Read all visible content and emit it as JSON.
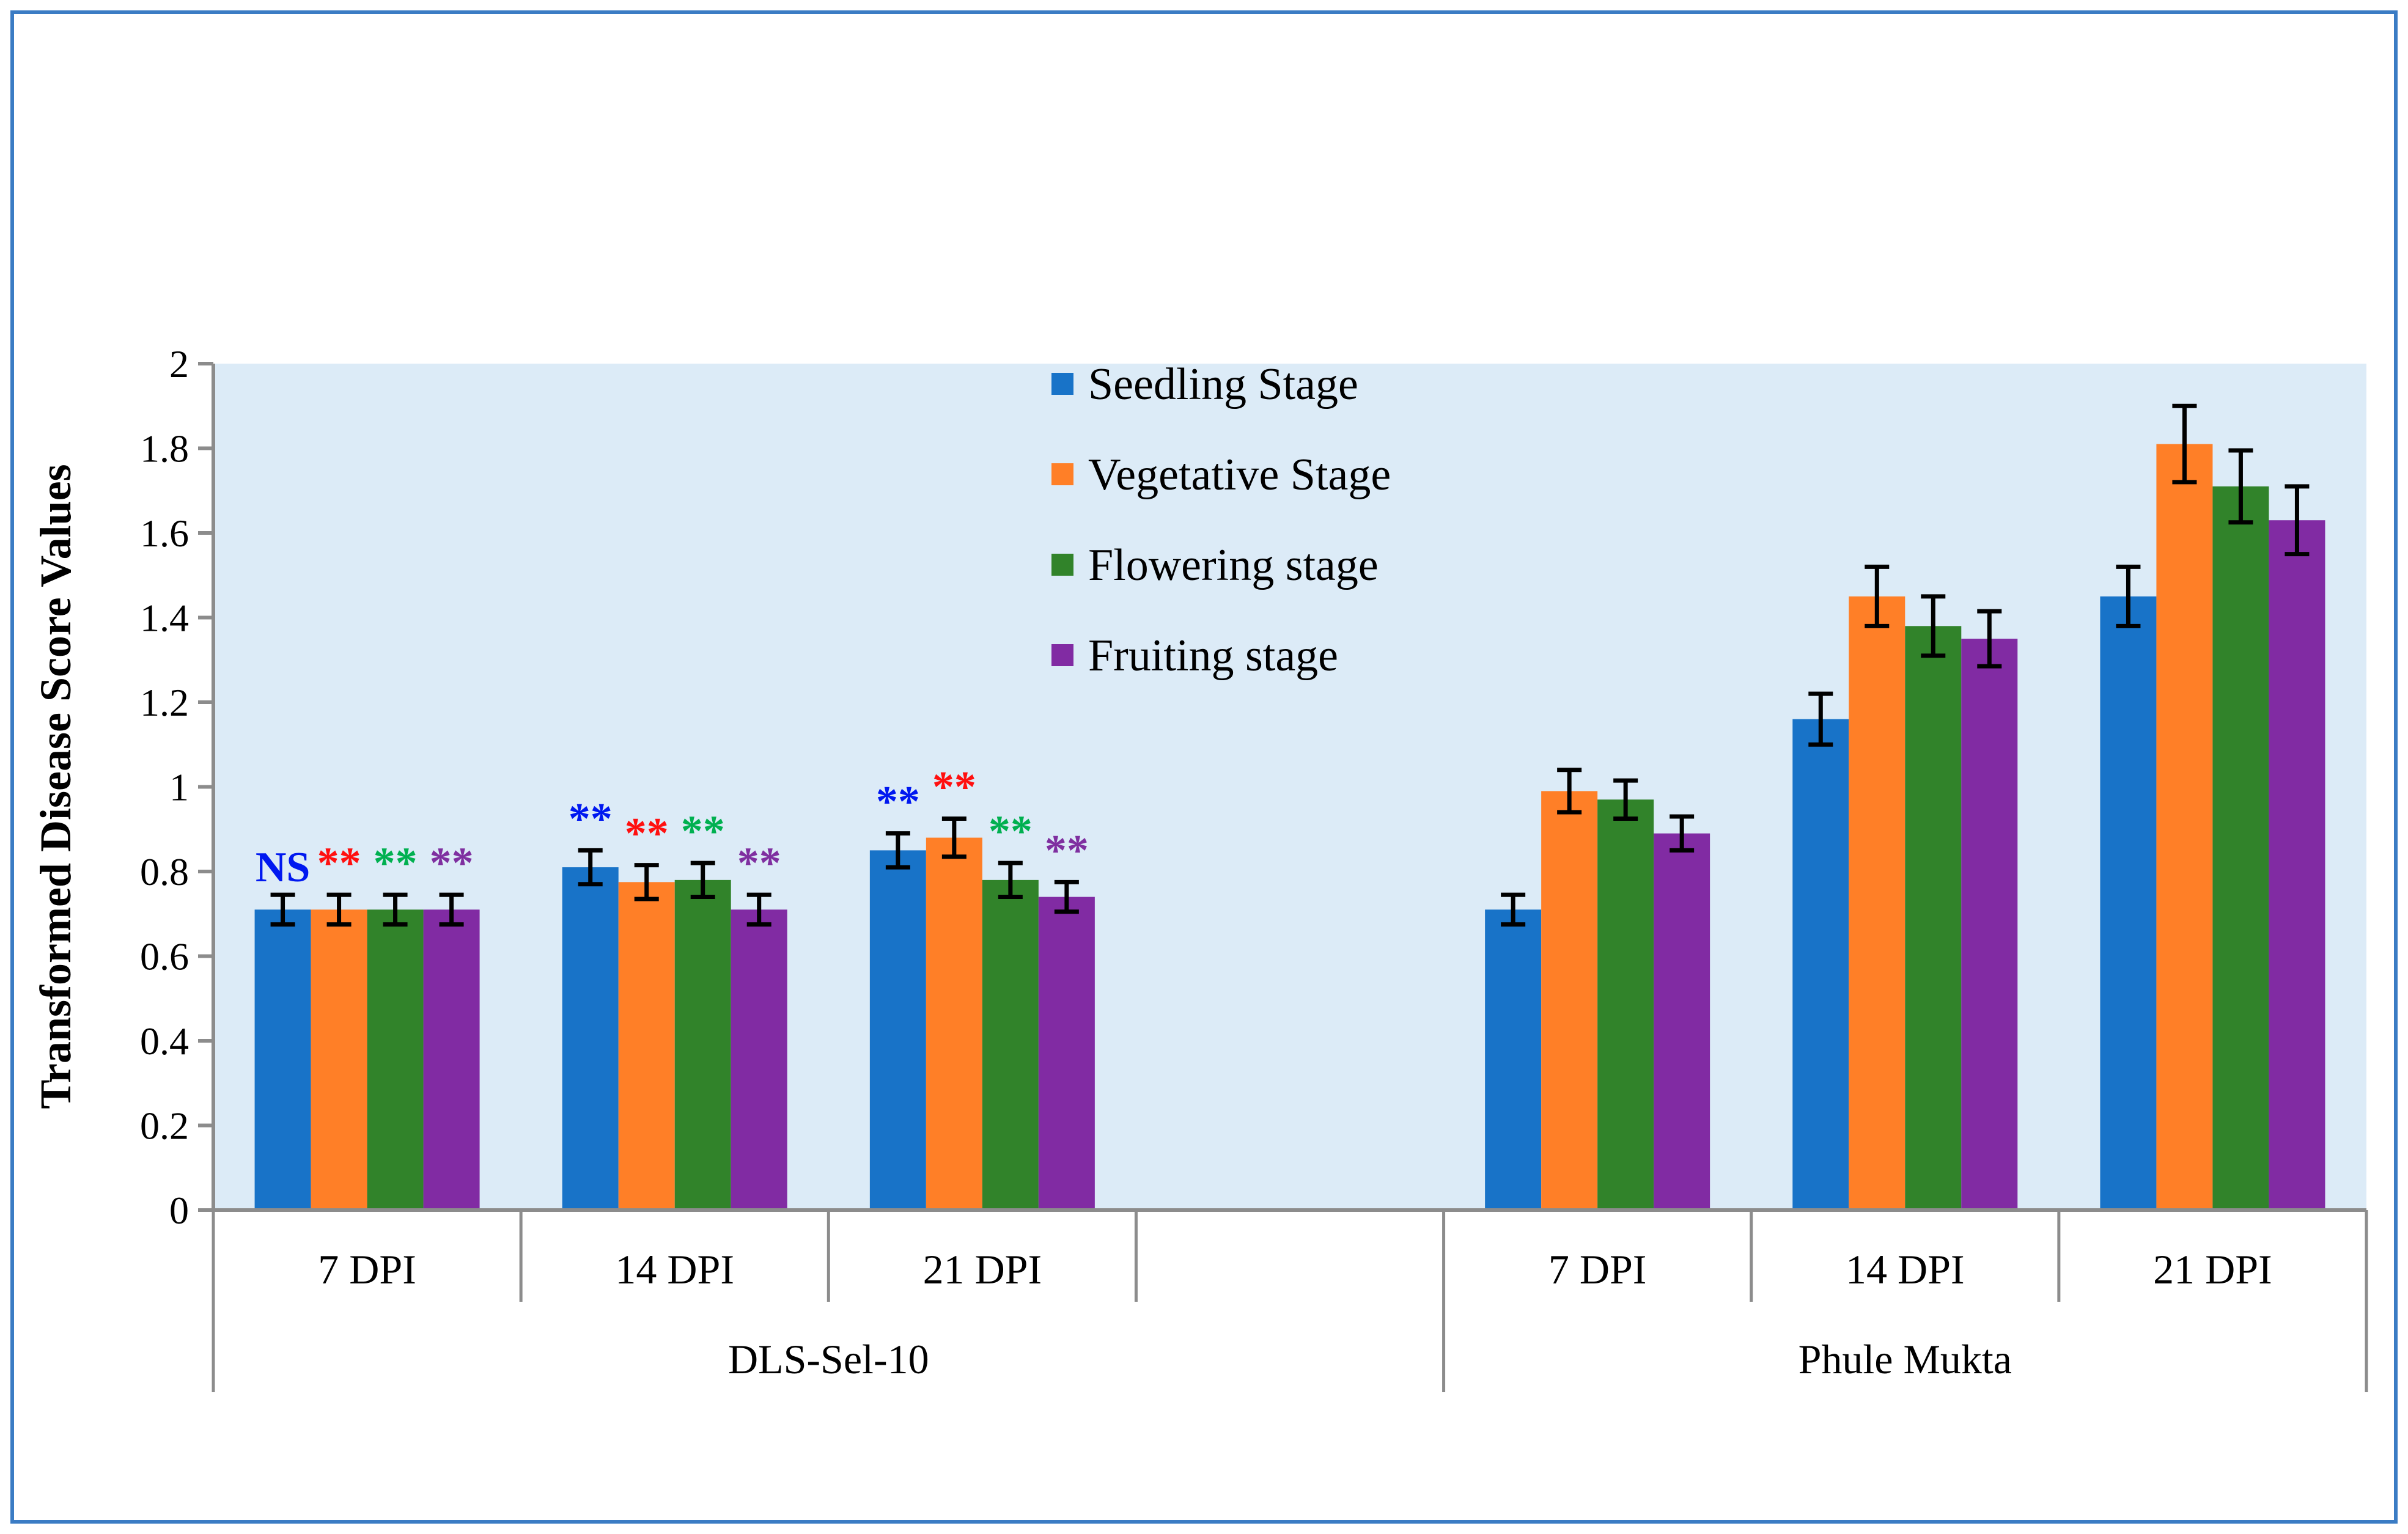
{
  "chart_data": {
    "type": "bar",
    "title": "",
    "ylabel": "Transformed Disease Score Values",
    "xlabel": "",
    "ylim": [
      0,
      2
    ],
    "yticks": [
      "0",
      "0.2",
      "0.4",
      "0.6",
      "0.8",
      "1",
      "1.2",
      "1.4",
      "1.6",
      "1.8",
      "2"
    ],
    "grid": false,
    "legend_position": "top-center",
    "groups": [
      {
        "name": "DLS-Sel-10",
        "categories": [
          "7 DPI",
          "14 DPI",
          "21 DPI",
          ""
        ]
      },
      {
        "name": "Phule Mukta",
        "categories": [
          "7 DPI",
          "14 DPI",
          "21 DPI"
        ]
      }
    ],
    "categories": [
      "7 DPI",
      "14 DPI",
      "21 DPI",
      "",
      "7 DPI",
      "14 DPI",
      "21 DPI"
    ],
    "series": [
      {
        "name": "Seedling Stage",
        "color": "#1873C8",
        "values": [
          0.71,
          0.81,
          0.85,
          null,
          0.71,
          1.16,
          1.45
        ],
        "errors": [
          0.035,
          0.04,
          0.04,
          null,
          0.035,
          0.06,
          0.07
        ]
      },
      {
        "name": "Vegetative Stage",
        "color": "#FF7F27",
        "values": [
          0.71,
          0.775,
          0.88,
          null,
          0.99,
          1.45,
          1.81
        ],
        "errors": [
          0.035,
          0.04,
          0.045,
          null,
          0.05,
          0.07,
          0.09
        ]
      },
      {
        "name": "Flowering stage",
        "color": "#31832A",
        "values": [
          0.71,
          0.78,
          0.78,
          null,
          0.97,
          1.38,
          1.71
        ],
        "errors": [
          0.035,
          0.04,
          0.04,
          null,
          0.045,
          0.07,
          0.085
        ]
      },
      {
        "name": "Fruiting stage",
        "color": "#812BA3",
        "values": [
          0.71,
          0.71,
          0.74,
          null,
          0.89,
          1.35,
          1.63
        ],
        "errors": [
          0.035,
          0.035,
          0.035,
          null,
          0.04,
          0.065,
          0.08
        ]
      }
    ],
    "annotations": [
      {
        "category": 0,
        "series": 0,
        "text": "NS",
        "color": "#0018F0"
      },
      {
        "category": 0,
        "series": 1,
        "text": "**",
        "color": "#FF1010"
      },
      {
        "category": 0,
        "series": 2,
        "text": "**",
        "color": "#00B050"
      },
      {
        "category": 0,
        "series": 3,
        "text": "**",
        "color": "#7F2FA0"
      },
      {
        "category": 1,
        "series": 0,
        "text": "**",
        "color": "#0018F0"
      },
      {
        "category": 1,
        "series": 1,
        "text": "**",
        "color": "#FF1010"
      },
      {
        "category": 1,
        "series": 2,
        "text": "**",
        "color": "#00B050"
      },
      {
        "category": 1,
        "series": 3,
        "text": "**",
        "color": "#7F2FA0"
      },
      {
        "category": 2,
        "series": 0,
        "text": "**",
        "color": "#0018F0"
      },
      {
        "category": 2,
        "series": 1,
        "text": "**",
        "color": "#FF1010"
      },
      {
        "category": 2,
        "series": 2,
        "text": "**",
        "color": "#00B050"
      },
      {
        "category": 2,
        "series": 3,
        "text": "**",
        "color": "#7F2FA0"
      }
    ],
    "plot_background": "#DCEBF7",
    "frame_color": "#3B7CC4"
  }
}
